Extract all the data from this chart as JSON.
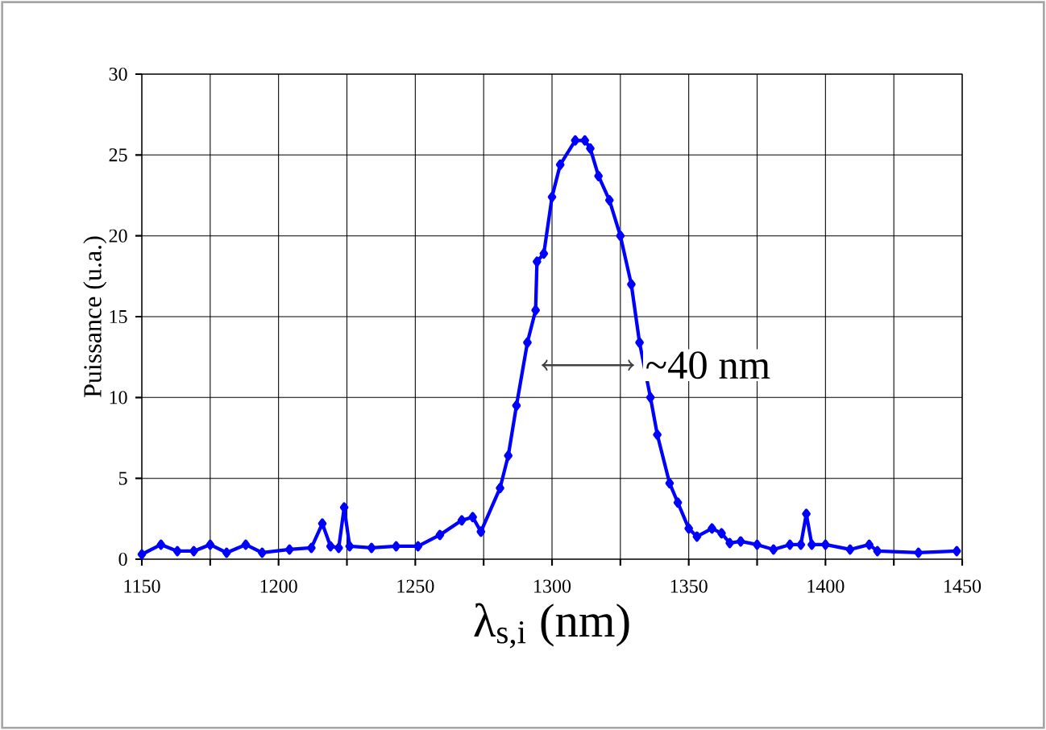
{
  "chart_data": {
    "type": "line",
    "xlabel": "λ$_{s,i}$ (nm)",
    "ylabel": "Puissance (u.a.)",
    "x": [
      1150,
      1157,
      1163,
      1169,
      1175,
      1181,
      1188,
      1194,
      1204,
      1212,
      1216,
      1219,
      1222,
      1224,
      1226,
      1234,
      1243,
      1251,
      1259,
      1267,
      1271,
      1274,
      1281,
      1284,
      1287,
      1291,
      1294,
      1294.5,
      1297,
      1300,
      1303,
      1308.5,
      1312,
      1314,
      1317,
      1321,
      1325,
      1329,
      1332,
      1336,
      1338.5,
      1343,
      1346,
      1350,
      1353,
      1358.5,
      1362,
      1365,
      1369,
      1375,
      1381,
      1387,
      1391,
      1393,
      1395,
      1400,
      1409,
      1416,
      1419,
      1434,
      1448
    ],
    "series": [
      {
        "color": "#0000ff",
        "values": [
          0.3,
          0.9,
          0.5,
          0.5,
          0.9,
          0.4,
          0.9,
          0.4,
          0.6,
          0.7,
          2.2,
          0.8,
          0.7,
          3.2,
          0.8,
          0.7,
          0.8,
          0.8,
          1.5,
          2.4,
          2.6,
          1.7,
          4.4,
          6.4,
          9.5,
          13.4,
          15.4,
          18.4,
          18.9,
          22.4,
          24.4,
          25.9,
          25.9,
          25.4,
          23.7,
          22.2,
          20,
          17,
          13.4,
          10,
          7.7,
          4.7,
          3.5,
          1.9,
          1.4,
          1.9,
          1.6,
          1.0,
          1.1,
          0.9,
          0.6,
          0.9,
          0.9,
          2.8,
          0.9,
          0.9,
          0.6,
          0.9,
          0.5,
          0.4,
          0.5
        ]
      }
    ],
    "xlim": [
      1150,
      1450
    ],
    "xticks": [
      1150,
      {
        "value": 1175,
        "label": null
      },
      1200,
      {
        "value": 1225,
        "label": null
      },
      1250,
      {
        "value": 1275,
        "label": null
      },
      1300,
      {
        "value": 1325,
        "label": null
      },
      1350,
      {
        "value": 1375,
        "label": null
      },
      1400,
      {
        "value": 1425,
        "label": null
      },
      1450
    ],
    "ylim": [
      0,
      30
    ],
    "yticks": [
      0,
      5,
      10,
      15,
      20,
      25,
      30
    ],
    "grid": true,
    "marker": "diamond",
    "line_style": "solid",
    "annotations": [
      {
        "text": "~40 nm",
        "x": 1330,
        "y": 12
      }
    ]
  }
}
